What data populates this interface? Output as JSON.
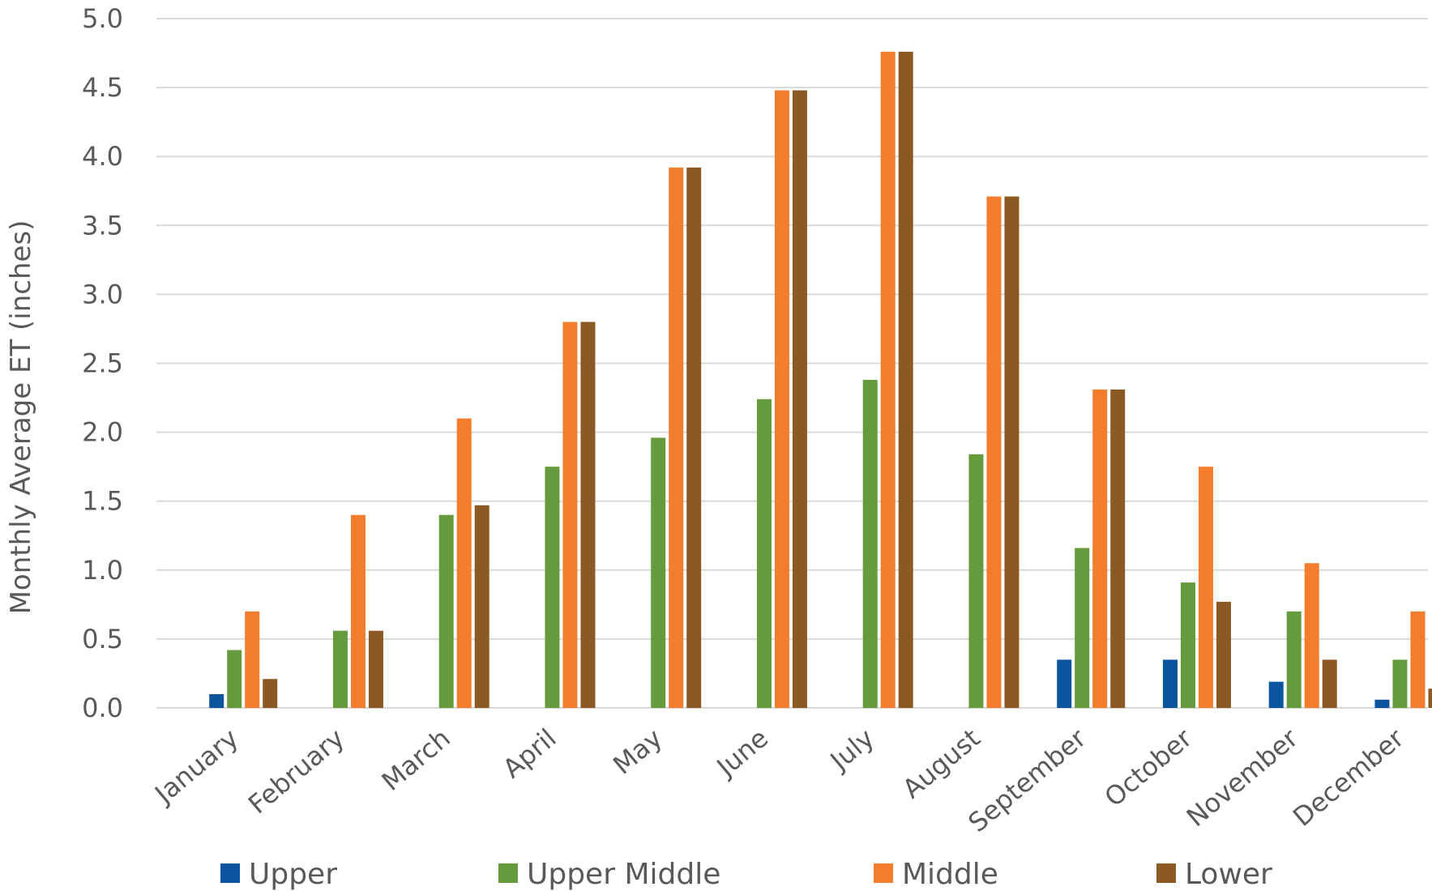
{
  "chart_data": {
    "type": "bar",
    "title": "",
    "xlabel": "",
    "ylabel": "Monthly Average ET (inches)",
    "ylim": [
      0,
      5
    ],
    "yticks": [
      "0.0",
      "0.5",
      "1.0",
      "1.5",
      "2.0",
      "2.5",
      "3.0",
      "3.5",
      "4.0",
      "4.5",
      "5.0"
    ],
    "grid": true,
    "legend": "bottom",
    "categories": [
      "January",
      "February",
      "March",
      "April",
      "May",
      "June",
      "July",
      "August",
      "September",
      "October",
      "November",
      "December"
    ],
    "series": [
      {
        "name": "Upper",
        "color": "#0b559f",
        "values": [
          0.1,
          0,
          0,
          0,
          0,
          0,
          0,
          0,
          0.35,
          0.35,
          0.19,
          0.06
        ]
      },
      {
        "name": "Upper Middle",
        "color": "#659a3d",
        "values": [
          0.42,
          0.56,
          1.4,
          1.75,
          1.96,
          2.24,
          2.38,
          1.84,
          1.16,
          0.91,
          0.7,
          0.35
        ]
      },
      {
        "name": "Middle",
        "color": "#f47d2d",
        "values": [
          0.7,
          1.4,
          2.1,
          2.8,
          3.92,
          4.48,
          4.76,
          3.71,
          2.31,
          1.75,
          1.05,
          0.7
        ]
      },
      {
        "name": "Lower",
        "color": "#8b5a24",
        "values": [
          0.21,
          0.56,
          1.47,
          2.8,
          3.92,
          4.48,
          4.76,
          3.71,
          2.31,
          0.77,
          0.35,
          0.14
        ]
      }
    ]
  }
}
